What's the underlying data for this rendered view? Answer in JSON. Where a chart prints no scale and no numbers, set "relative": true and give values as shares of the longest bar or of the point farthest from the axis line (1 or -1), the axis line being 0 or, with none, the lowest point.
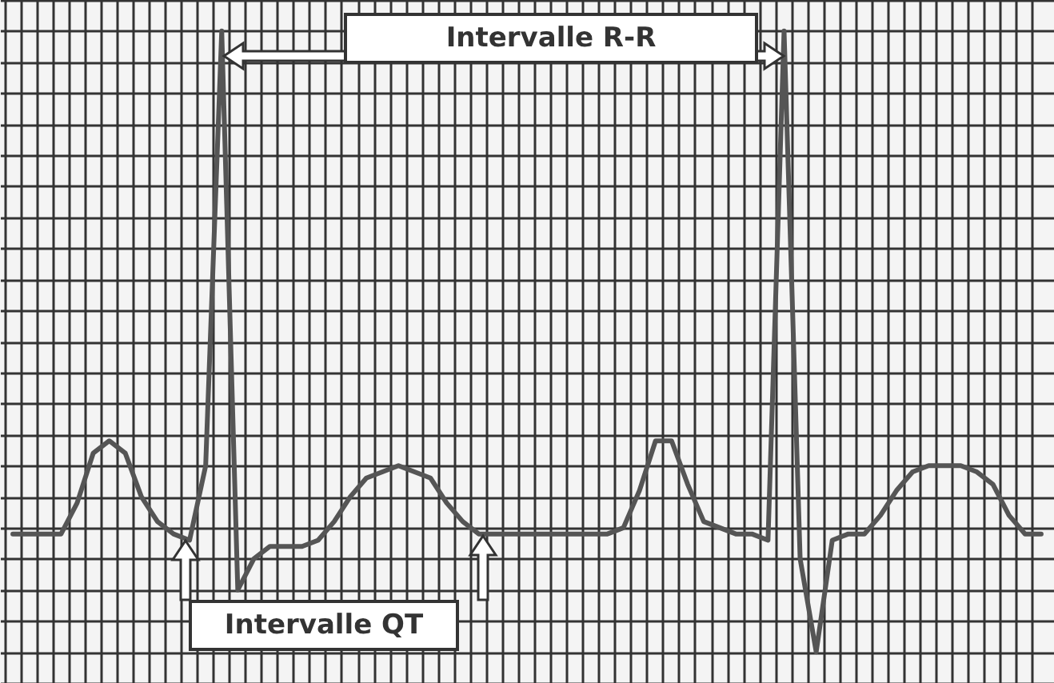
{
  "chart_data": {
    "type": "line",
    "relative": true,
    "grid": true,
    "color": "#555555",
    "categories": [
      null,
      null,
      null,
      null,
      null,
      null,
      null,
      null,
      null,
      null,
      null,
      null,
      null,
      null,
      null,
      null,
      null,
      null,
      null,
      null,
      null,
      null,
      null,
      null,
      null,
      null,
      null,
      null,
      null,
      null,
      null,
      null,
      null,
      null,
      null,
      null,
      null,
      null,
      null,
      null,
      null,
      null,
      null,
      null,
      null,
      null,
      null,
      null,
      null,
      null,
      null,
      null,
      null,
      null,
      null,
      null,
      null,
      null,
      null,
      null,
      null,
      null,
      null,
      null,
      null
    ],
    "values": [
      0.19,
      0.19,
      0.19,
      0.19,
      0.24,
      0.32,
      0.34,
      0.32,
      0.25,
      0.21,
      0.19,
      0.18,
      0.3,
      1,
      0.1,
      0.15,
      0.17,
      0.17,
      0.17,
      0.18,
      0.21,
      0.25,
      0.28,
      0.29,
      0.3,
      0.29,
      0.28,
      0.24,
      0.21,
      0.19,
      0.19,
      0.19,
      0.19,
      0.19,
      0.19,
      0.19,
      0.19,
      0.19,
      0.2,
      0.26,
      0.34,
      0.34,
      0.27,
      0.21,
      0.2,
      0.19,
      0.19,
      0.18,
      1,
      0.15,
      0,
      0.18,
      0.19,
      0.19,
      0.22,
      0.26,
      0.29,
      0.3,
      0.3,
      0.3,
      0.29,
      0.27,
      0.22,
      0.19,
      0.19
    ],
    "annotations": [
      "Intervalle R-R",
      "Intervalle QT"
    ]
  }
}
